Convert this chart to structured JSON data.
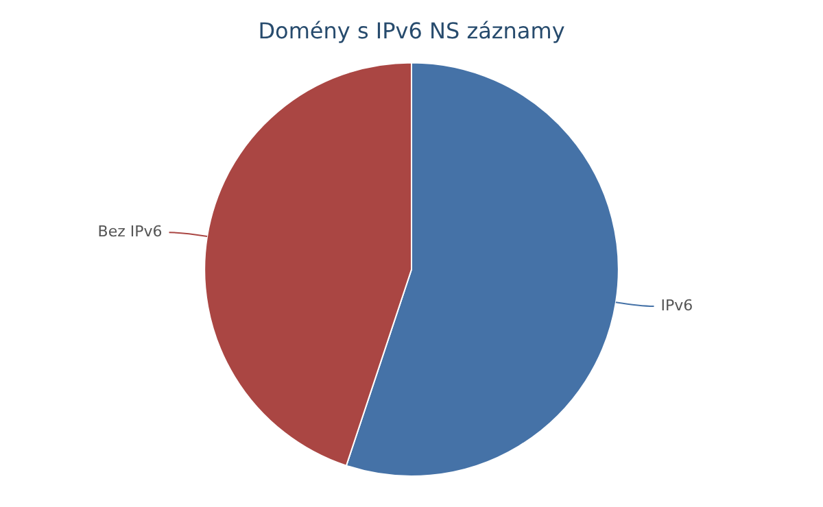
{
  "chart_data": {
    "type": "pie",
    "title": "Domény s IPv6 NS záznamy",
    "categories": [
      "IPv6",
      "Bez IPv6"
    ],
    "values": [
      55.1,
      44.9
    ],
    "colors": [
      "#4572a7",
      "#aa4643"
    ],
    "legend": false
  }
}
